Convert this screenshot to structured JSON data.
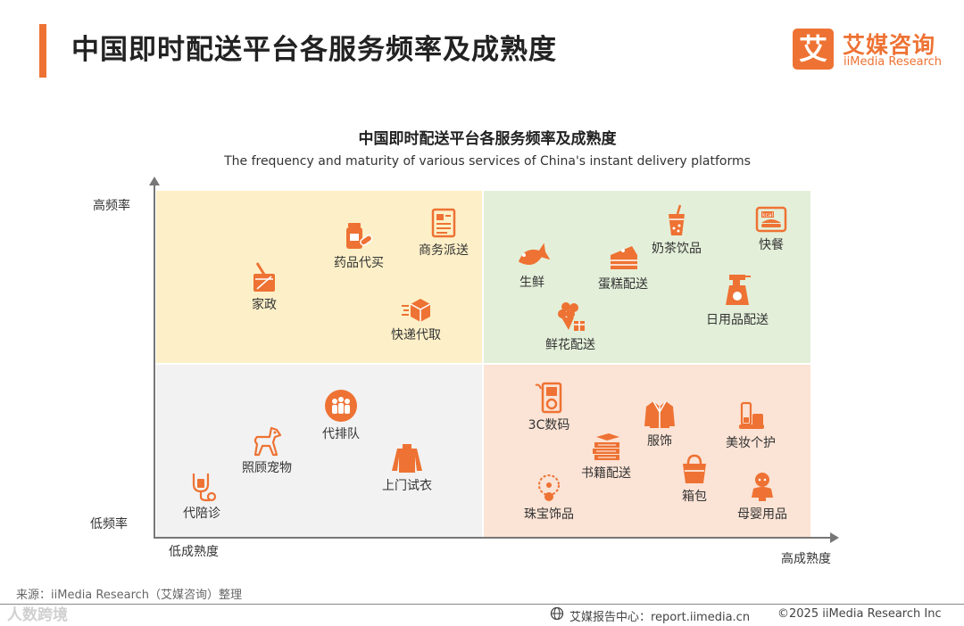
{
  "header": {
    "title": "中国即时配送平台各服务频率及成熟度",
    "logo_mark": "艾",
    "logo_cn": "艾媒咨询",
    "logo_en": "iiMedia Research"
  },
  "chart": {
    "title": "中国即时配送平台各服务频率及成熟度",
    "subtitle": "The frequency and maturity of various services of China's instant delivery platforms",
    "y_high": "高频率",
    "y_low": "低频率",
    "x_low": "低成熟度",
    "x_high": "高成熟度"
  },
  "quadrants": {
    "top_left": {
      "color": "#fdf0c8",
      "items": [
        {
          "label": "药品代买",
          "icon": "medicine-icon"
        },
        {
          "label": "商务派送",
          "icon": "document-icon"
        },
        {
          "label": "家政",
          "icon": "cleaning-bucket-icon"
        },
        {
          "label": "快递代取",
          "icon": "parcel-icon"
        }
      ]
    },
    "top_right": {
      "color": "#e3efd9",
      "items": [
        {
          "label": "奶茶饮品",
          "icon": "milk-tea-icon"
        },
        {
          "label": "快餐",
          "icon": "fast-food-icon"
        },
        {
          "label": "生鲜",
          "icon": "fish-icon"
        },
        {
          "label": "蛋糕配送",
          "icon": "cake-icon"
        },
        {
          "label": "日用品配送",
          "icon": "spray-bottle-icon"
        },
        {
          "label": "鲜花配送",
          "icon": "flower-icon"
        }
      ]
    },
    "bottom_left": {
      "color": "#f2f2f2",
      "items": [
        {
          "label": "代排队",
          "icon": "queue-icon"
        },
        {
          "label": "照顾宠物",
          "icon": "dog-icon"
        },
        {
          "label": "上门试衣",
          "icon": "sweater-icon"
        },
        {
          "label": "代陪诊",
          "icon": "stethoscope-icon"
        }
      ]
    },
    "bottom_right": {
      "color": "#fbe3d5",
      "items": [
        {
          "label": "3C数码",
          "icon": "mp3-player-icon"
        },
        {
          "label": "服饰",
          "icon": "jacket-icon"
        },
        {
          "label": "美妆个护",
          "icon": "cosmetics-icon"
        },
        {
          "label": "书籍配送",
          "icon": "books-icon"
        },
        {
          "label": "箱包",
          "icon": "handbag-icon"
        },
        {
          "label": "珠宝饰品",
          "icon": "necklace-icon"
        },
        {
          "label": "母婴用品",
          "icon": "baby-icon"
        }
      ]
    }
  },
  "footer": {
    "source": "来源：iiMedia Research（艾媒咨询）整理",
    "watermark": "人数跨境",
    "site": "艾媒报告中心：report.iimedia.cn",
    "copyright": "©2025  iiMedia Research  Inc"
  },
  "colors": {
    "accent": "#ee7233",
    "icon": "#ee7233"
  }
}
